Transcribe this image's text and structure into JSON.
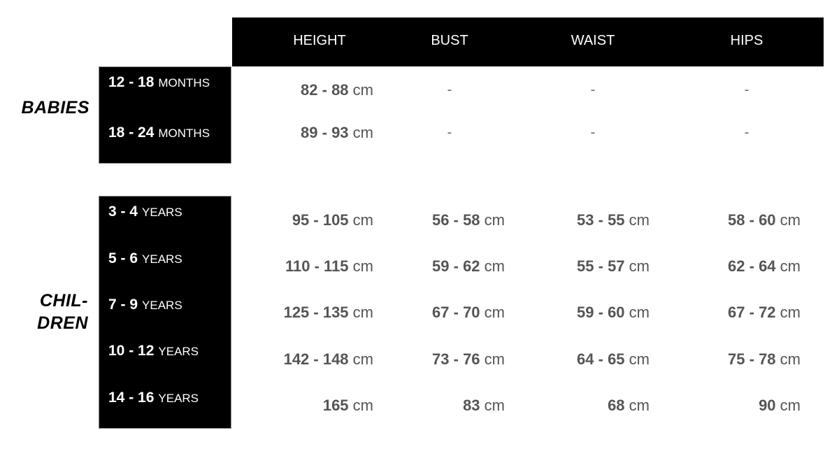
{
  "header": {
    "columns": [
      "HEIGHT",
      "BUST",
      "WAIST",
      "HIPS"
    ]
  },
  "groups": [
    {
      "label": "BABIES",
      "rows": [
        {
          "age": "12 - 18",
          "unit": "MONTHS",
          "height": "82 - 88",
          "bust": "-",
          "waist": "-",
          "hips": "-"
        },
        {
          "age": "18 - 24",
          "unit": "MONTHS",
          "height": "89 - 93",
          "bust": "-",
          "waist": "-",
          "hips": "-"
        }
      ]
    },
    {
      "label_line1": "CHIL-",
      "label_line2": "DREN",
      "rows": [
        {
          "age": "3 - 4",
          "unit": "YEARS",
          "height": "95 - 105",
          "bust": "56 - 58",
          "waist": "53 - 55",
          "hips": "58 - 60"
        },
        {
          "age": "5 - 6",
          "unit": "YEARS",
          "height": "110 - 115",
          "bust": "59 - 62",
          "waist": "55 - 57",
          "hips": "62 - 64"
        },
        {
          "age": "7 - 9",
          "unit": "YEARS",
          "height": "125 - 135",
          "bust": "67 - 70",
          "waist": "59 - 60",
          "hips": "67 - 72"
        },
        {
          "age": "10 - 12",
          "unit": "YEARS",
          "height": "142 - 148",
          "bust": "73 - 76",
          "waist": "64 - 65",
          "hips": "75 - 78"
        },
        {
          "age": "14 - 16",
          "unit": "YEARS",
          "height": "165",
          "bust": "83",
          "waist": "68",
          "hips": "90"
        }
      ]
    }
  ],
  "unit_cm": "cm"
}
